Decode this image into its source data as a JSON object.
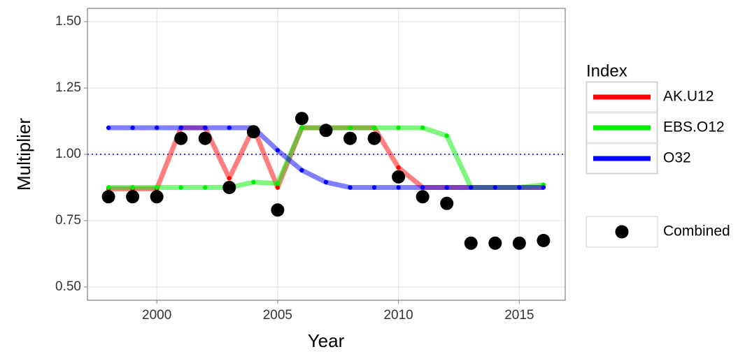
{
  "chart_data": {
    "type": "line",
    "x_label": "Year",
    "y_label": "Multiplier",
    "x": [
      1998,
      1999,
      2000,
      2001,
      2002,
      2003,
      2004,
      2005,
      2006,
      2007,
      2008,
      2009,
      2010,
      2011,
      2012,
      2013,
      2014,
      2015,
      2016
    ],
    "series": [
      {
        "name": "AK.U12",
        "color": "#ff0000",
        "values": [
          0.87,
          0.87,
          0.87,
          1.1,
          1.1,
          0.91,
          1.1,
          0.875,
          1.1,
          1.1,
          1.1,
          1.1,
          0.95,
          0.875,
          0.875,
          0.875,
          0.875,
          0.875,
          0.875
        ]
      },
      {
        "name": "EBS.O12",
        "color": "#00ee00",
        "values": [
          0.875,
          0.875,
          0.875,
          0.875,
          0.875,
          0.875,
          0.895,
          0.89,
          1.1,
          1.1,
          1.1,
          1.1,
          1.1,
          1.1,
          1.07,
          0.875,
          0.875,
          0.875,
          0.885
        ]
      },
      {
        "name": "O32",
        "color": "#0000ff",
        "values": [
          1.1,
          1.1,
          1.1,
          1.1,
          1.1,
          1.1,
          1.1,
          1.015,
          0.94,
          0.895,
          0.875,
          0.875,
          0.875,
          0.875,
          0.875,
          0.875,
          0.875,
          0.875,
          0.875
        ]
      }
    ],
    "combined": {
      "name": "Combined",
      "color": "#000000",
      "values": [
        0.84,
        0.84,
        0.84,
        1.06,
        1.06,
        0.875,
        1.085,
        0.79,
        1.135,
        1.09,
        1.06,
        1.06,
        0.915,
        0.84,
        0.815,
        0.665,
        0.665,
        0.665,
        0.675
      ]
    },
    "legend_title": "Index",
    "hline": 1,
    "xlim": [
      1997.13,
      2016.9
    ],
    "ylim": [
      0.45,
      1.55
    ],
    "xticks": [
      2000,
      2005,
      2010,
      2015
    ],
    "yticks": [
      {
        "value": 0.5,
        "label": "0.50"
      },
      {
        "value": 0.75,
        "label": "0.75"
      },
      {
        "value": 1,
        "label": "1.00"
      },
      {
        "value": 1.25,
        "label": "1.25"
      },
      {
        "value": 1.5,
        "label": "1.50"
      }
    ],
    "grid": true,
    "legend_position": "right"
  }
}
